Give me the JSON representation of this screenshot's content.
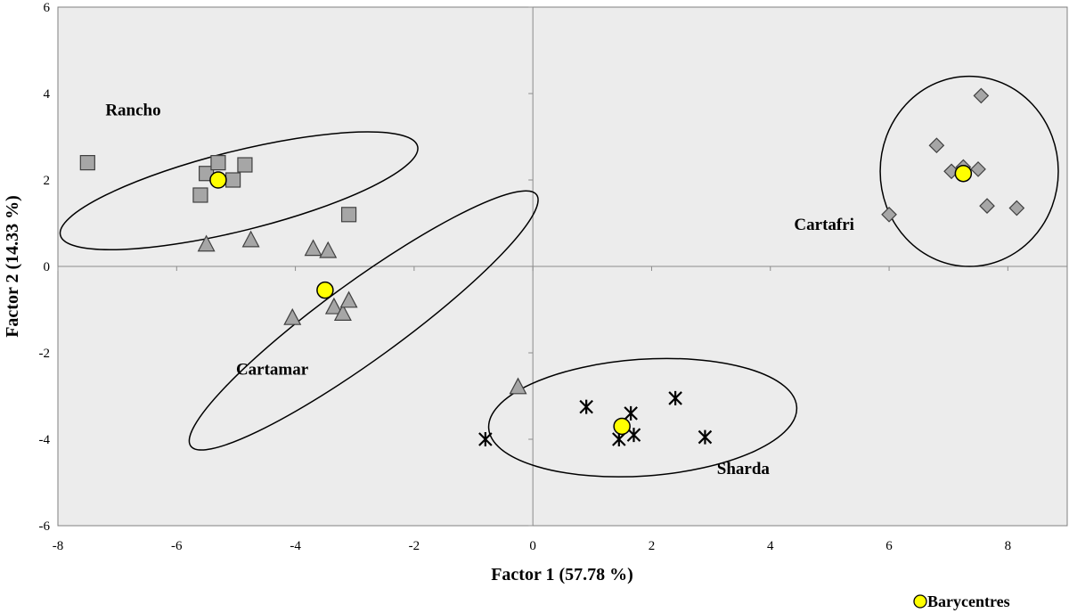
{
  "chart_data": {
    "type": "scatter",
    "xlabel": "Factor 1 (57.78 %)",
    "ylabel": "Factor 2 (14.33 %)",
    "xlim": [
      -8,
      9
    ],
    "ylim": [
      -6,
      6
    ],
    "x_ticks": [
      -8,
      -6,
      -4,
      -2,
      0,
      2,
      4,
      6,
      8
    ],
    "y_ticks": [
      -6,
      -4,
      -2,
      0,
      2,
      4,
      6
    ],
    "grid": false,
    "zero_lines": true,
    "legend": {
      "position": "bottom-right",
      "label": "Barycentres"
    },
    "colors": {
      "plot_bg": "#ececec",
      "marker_fill": "#a6a6a6",
      "barycentre": "#ffff00"
    },
    "series": [
      {
        "name": "Rancho",
        "marker": "square",
        "points": [
          [
            -7.5,
            2.4
          ],
          [
            -5.6,
            1.65
          ],
          [
            -5.5,
            2.15
          ],
          [
            -5.3,
            2.4
          ],
          [
            -5.05,
            2.0
          ],
          [
            -4.85,
            2.35
          ],
          [
            -3.1,
            1.2
          ]
        ]
      },
      {
        "name": "Cartamar",
        "marker": "triangle",
        "points": [
          [
            -5.5,
            0.5
          ],
          [
            -4.75,
            0.6
          ],
          [
            -3.7,
            0.4
          ],
          [
            -3.45,
            0.35
          ],
          [
            -4.05,
            -1.2
          ],
          [
            -3.35,
            -0.95
          ],
          [
            -3.2,
            -1.1
          ],
          [
            -3.1,
            -0.8
          ],
          [
            -0.25,
            -2.8
          ]
        ]
      },
      {
        "name": "Sharda",
        "marker": "asterisk",
        "points": [
          [
            -0.8,
            -4.0
          ],
          [
            0.9,
            -3.25
          ],
          [
            1.45,
            -4.0
          ],
          [
            1.65,
            -3.4
          ],
          [
            1.7,
            -3.9
          ],
          [
            2.4,
            -3.05
          ],
          [
            2.9,
            -3.95
          ]
        ]
      },
      {
        "name": "Cartafri",
        "marker": "diamond",
        "points": [
          [
            6.0,
            1.2
          ],
          [
            6.8,
            2.8
          ],
          [
            7.05,
            2.2
          ],
          [
            7.25,
            2.3
          ],
          [
            7.5,
            2.25
          ],
          [
            7.55,
            3.95
          ],
          [
            7.65,
            1.4
          ],
          [
            8.15,
            1.35
          ]
        ]
      }
    ],
    "barycentres": [
      {
        "group": "Rancho",
        "x": -5.3,
        "y": 2.0
      },
      {
        "group": "Cartamar",
        "x": -3.5,
        "y": -0.55
      },
      {
        "group": "Sharda",
        "x": 1.5,
        "y": -3.7
      },
      {
        "group": "Cartafri",
        "x": 7.25,
        "y": 2.15
      }
    ],
    "ellipses": [
      {
        "group": "Rancho",
        "cx": -4.95,
        "cy": 1.75,
        "rx": 3.1,
        "ry": 0.92,
        "angle_deg": 14
      },
      {
        "group": "Cartamar",
        "cx": -2.85,
        "cy": -1.25,
        "rx": 3.6,
        "ry": 0.9,
        "angle_deg": 36
      },
      {
        "group": "Sharda",
        "cx": 1.85,
        "cy": -3.5,
        "rx": 2.6,
        "ry": 1.35,
        "angle_deg": 4
      },
      {
        "group": "Cartafri",
        "cx": 7.35,
        "cy": 2.2,
        "rx": 1.5,
        "ry": 2.2,
        "angle_deg": 0
      }
    ],
    "annotations": [
      {
        "text": "Rancho",
        "x": -7.2,
        "y": 3.5
      },
      {
        "text": "Cartamar",
        "x": -5.0,
        "y": -2.5
      },
      {
        "text": "Sharda",
        "x": 3.1,
        "y": -4.8
      },
      {
        "text": "Cartafri",
        "x": 4.4,
        "y": 0.85
      }
    ]
  }
}
